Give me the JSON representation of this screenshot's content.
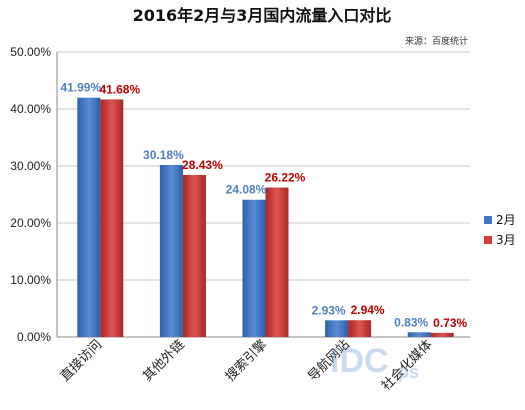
{
  "chart_data": {
    "type": "bar",
    "title": "2016年2月与3月国内流量入口对比",
    "source": "来源：百度统计",
    "categories": [
      "直接访问",
      "其他外链",
      "搜索引擎",
      "导航网站",
      "社会化媒体"
    ],
    "series": [
      {
        "name": "2月",
        "values": [
          41.99,
          30.18,
          24.08,
          2.93,
          0.83
        ],
        "labels": [
          "41.99%",
          "30.18%",
          "24.08%",
          "2.93%",
          "0.83%"
        ],
        "color": "#4472C4",
        "label_color": "#4F81BD"
      },
      {
        "name": "3月",
        "values": [
          41.68,
          28.43,
          26.22,
          2.94,
          0.73
        ],
        "labels": [
          "41.68%",
          "28.43%",
          "26.22%",
          "2.94%",
          "0.73%"
        ],
        "color": "#D9413F",
        "label_color": "#C00000"
      }
    ],
    "yticks": [
      "0.00%",
      "10.00%",
      "20.00%",
      "30.00%",
      "40.00%",
      "50.00%"
    ],
    "ylim": [
      0,
      50
    ],
    "grid": true,
    "legend_position": "right"
  },
  "watermark": {
    "text": "IDC",
    "sub": "ps"
  }
}
